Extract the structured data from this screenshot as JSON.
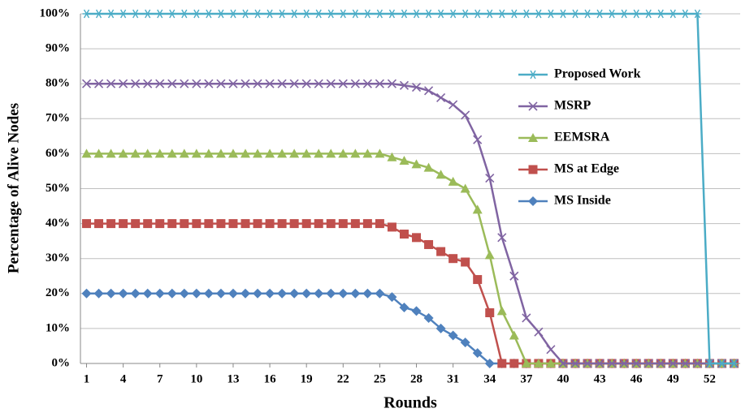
{
  "chart_data": {
    "type": "line",
    "xlabel": "Rounds",
    "ylabel": "Percentage of Alive Nodes",
    "x": [
      1,
      2,
      3,
      4,
      5,
      6,
      7,
      8,
      9,
      10,
      11,
      12,
      13,
      14,
      15,
      16,
      17,
      18,
      19,
      20,
      21,
      22,
      23,
      24,
      25,
      26,
      27,
      28,
      29,
      30,
      31,
      32,
      33,
      34,
      35,
      36,
      37,
      38,
      39,
      40,
      41,
      42,
      43,
      44,
      45,
      46,
      47,
      48,
      49,
      50,
      51,
      52,
      53,
      54
    ],
    "xlim": [
      0.5,
      54.5
    ],
    "xticks": [
      1,
      4,
      7,
      10,
      13,
      16,
      19,
      22,
      25,
      28,
      31,
      34,
      37,
      40,
      43,
      46,
      49,
      52
    ],
    "ylim": [
      0,
      100
    ],
    "yticks": [
      {
        "value": 0,
        "label": "0%"
      },
      {
        "value": 10,
        "label": "10%"
      },
      {
        "value": 20,
        "label": "20%"
      },
      {
        "value": 30,
        "label": "30%"
      },
      {
        "value": 40,
        "label": "40%"
      },
      {
        "value": 50,
        "label": "50%"
      },
      {
        "value": 60,
        "label": "60%"
      },
      {
        "value": 70,
        "label": "70%"
      },
      {
        "value": 80,
        "label": "80%"
      },
      {
        "value": 90,
        "label": "90%"
      },
      {
        "value": 100,
        "label": "100%"
      }
    ],
    "grid": true,
    "legend": "center right",
    "series": [
      {
        "name": "Proposed Work",
        "color": "#4bacc6",
        "marker": "star",
        "values": [
          100,
          100,
          100,
          100,
          100,
          100,
          100,
          100,
          100,
          100,
          100,
          100,
          100,
          100,
          100,
          100,
          100,
          100,
          100,
          100,
          100,
          100,
          100,
          100,
          100,
          100,
          100,
          100,
          100,
          100,
          100,
          100,
          100,
          100,
          100,
          100,
          100,
          100,
          100,
          100,
          100,
          100,
          100,
          100,
          100,
          100,
          100,
          100,
          100,
          100,
          100,
          0,
          0,
          0
        ]
      },
      {
        "name": "MSRP",
        "color": "#8064a2",
        "marker": "x",
        "values": [
          80,
          80,
          80,
          80,
          80,
          80,
          80,
          80,
          80,
          80,
          80,
          80,
          80,
          80,
          80,
          80,
          80,
          80,
          80,
          80,
          80,
          80,
          80,
          80,
          80,
          80,
          79.5,
          79,
          78,
          76,
          74,
          71,
          64,
          53,
          36,
          25,
          13,
          9,
          4,
          0,
          0,
          0,
          0,
          0,
          0,
          0,
          0,
          0,
          0,
          0,
          0,
          0,
          0,
          0
        ]
      },
      {
        "name": "EEMSRA",
        "color": "#9bbb59",
        "marker": "triangle",
        "values": [
          60,
          60,
          60,
          60,
          60,
          60,
          60,
          60,
          60,
          60,
          60,
          60,
          60,
          60,
          60,
          60,
          60,
          60,
          60,
          60,
          60,
          60,
          60,
          60,
          60,
          59,
          58,
          57,
          56,
          54,
          52,
          50,
          44,
          31,
          15,
          8,
          0,
          0,
          0,
          0,
          0,
          0,
          0,
          0,
          0,
          0,
          0,
          0,
          0,
          0,
          0,
          0,
          0,
          0
        ]
      },
      {
        "name": "MS at Edge",
        "color": "#c0504d",
        "marker": "square",
        "values": [
          40,
          40,
          40,
          40,
          40,
          40,
          40,
          40,
          40,
          40,
          40,
          40,
          40,
          40,
          40,
          40,
          40,
          40,
          40,
          40,
          40,
          40,
          40,
          40,
          40,
          39,
          37,
          36,
          34,
          32,
          30,
          29,
          24,
          14.5,
          0,
          0,
          0,
          0,
          0,
          0,
          0,
          0,
          0,
          0,
          0,
          0,
          0,
          0,
          0,
          0,
          0,
          0,
          0,
          0
        ]
      },
      {
        "name": "MS Inside",
        "color": "#4f81bd",
        "marker": "diamond",
        "values": [
          20,
          20,
          20,
          20,
          20,
          20,
          20,
          20,
          20,
          20,
          20,
          20,
          20,
          20,
          20,
          20,
          20,
          20,
          20,
          20,
          20,
          20,
          20,
          20,
          20,
          19,
          16,
          15,
          13,
          10,
          8,
          6,
          3,
          0,
          0,
          0,
          0,
          0,
          0,
          0,
          0,
          0,
          0,
          0,
          0,
          0,
          0,
          0,
          0,
          0,
          0,
          0,
          0,
          0
        ]
      }
    ]
  }
}
